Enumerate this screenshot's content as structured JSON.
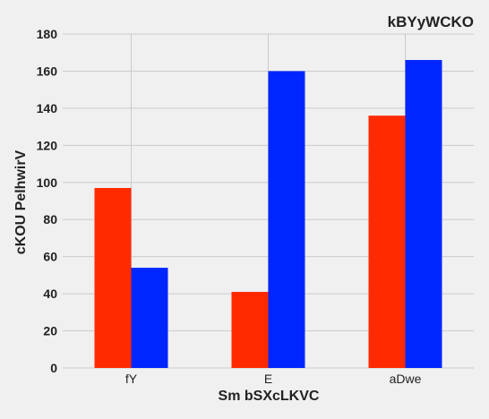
{
  "chart_data": {
    "type": "bar",
    "title": "kBYyWCKO",
    "xlabel": "Sm bSXcLKVC",
    "ylabel": "cKOU PelhwirV",
    "categories": [
      "fY",
      "E",
      "aDwe"
    ],
    "series": [
      {
        "values": [
          97,
          41,
          136
        ],
        "color": "#ff2a00"
      },
      {
        "values": [
          54,
          160,
          166
        ],
        "color": "#0026ff"
      }
    ],
    "ylim": [
      0,
      180
    ],
    "yticks": [
      0,
      20,
      40,
      60,
      80,
      100,
      120,
      140,
      160,
      180
    ],
    "grid": true,
    "background": "#f0f0f0",
    "grid_color": "#cbcbcb"
  }
}
